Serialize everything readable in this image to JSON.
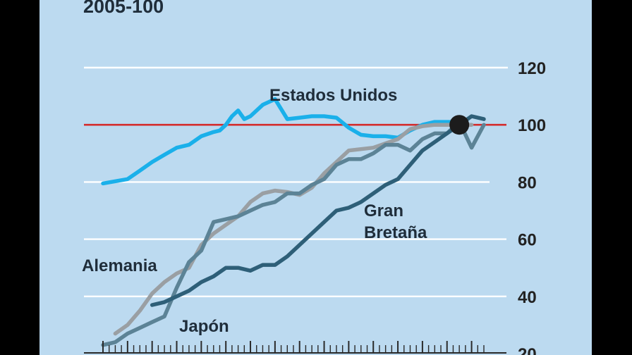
{
  "chart_data": {
    "type": "line",
    "title": "",
    "subtitle": "2005-100",
    "xlabel": "",
    "ylabel": "",
    "ylim": [
      20,
      120
    ],
    "yticks": [
      20,
      40,
      60,
      80,
      100,
      120
    ],
    "reference_line": 100,
    "grid": true,
    "series": [
      {
        "name": "Estados Unidos",
        "color": "#1ab0ea",
        "x": [
          0,
          4,
          6,
          8,
          10,
          12,
          14,
          16,
          18,
          19,
          20,
          21,
          22,
          23,
          24,
          26,
          28,
          30,
          32,
          34,
          36,
          38,
          40,
          42,
          44,
          46,
          48,
          50,
          52,
          54,
          56,
          58
        ],
        "y": [
          79.5,
          81,
          84,
          87,
          89.5,
          92,
          93,
          96,
          97.5,
          98,
          100,
          103,
          105,
          102,
          103,
          107,
          109,
          102,
          102.5,
          103,
          103,
          102.5,
          99,
          96.5,
          96,
          96,
          95.5,
          98,
          100,
          101,
          101,
          101
        ]
      },
      {
        "name": "Alemania",
        "color": "#9a9fa3",
        "x": [
          2,
          4,
          6,
          8,
          10,
          12,
          14,
          16,
          18,
          20,
          22,
          24,
          26,
          28,
          30,
          32,
          34,
          36,
          38,
          40,
          42,
          44,
          46,
          48,
          50,
          52,
          54,
          56,
          58,
          60
        ],
        "y": [
          27,
          30,
          35,
          41,
          45,
          48,
          50,
          58,
          62,
          65,
          68,
          73,
          76,
          77,
          76.5,
          75.5,
          78,
          83,
          87,
          91,
          91.5,
          92,
          93.5,
          95,
          98.5,
          99.5,
          100,
          100,
          100,
          100
        ]
      },
      {
        "name": "Japón",
        "color": "#5c8396",
        "x": [
          0,
          2,
          4,
          6,
          8,
          10,
          12,
          14,
          16,
          18,
          20,
          22,
          24,
          26,
          28,
          30,
          32,
          34,
          36,
          38,
          40,
          42,
          44,
          46,
          48,
          50,
          52,
          54,
          56,
          58,
          60,
          62
        ],
        "y": [
          23,
          24,
          27,
          29,
          31,
          33,
          43,
          52,
          56,
          66,
          67,
          68,
          70,
          72,
          73,
          76,
          76,
          79,
          81,
          86,
          88,
          88,
          90,
          93,
          93,
          91,
          95,
          97,
          97,
          101,
          92,
          100
        ]
      },
      {
        "name": "Gran Bretaña",
        "color": "#2e5f78",
        "x": [
          8,
          10,
          12,
          14,
          16,
          18,
          20,
          22,
          24,
          26,
          28,
          30,
          32,
          34,
          36,
          38,
          40,
          42,
          44,
          46,
          48,
          50,
          52,
          54,
          56,
          58,
          60,
          62
        ],
        "y": [
          37,
          38,
          40,
          42,
          45,
          47,
          50,
          50,
          49,
          51,
          51,
          54,
          58,
          62,
          66,
          70,
          71,
          73,
          76,
          79,
          81,
          86,
          91,
          94,
          97,
          100,
          103,
          102
        ]
      }
    ],
    "marker": {
      "x": 58,
      "y": 100
    },
    "legend": "inline labels"
  }
}
